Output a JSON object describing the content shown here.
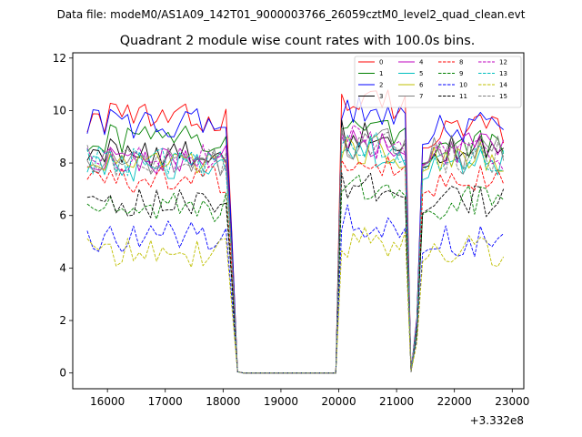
{
  "figure": {
    "suptitle": "Data file: modeM0/AS1A09_142T01_9000003766_26059cztM0_level2_quad_clean.evt"
  },
  "chart_data": {
    "type": "line",
    "title": "Quadrant 2 module wise count rates with 100.0s bins.",
    "xlabel": "",
    "ylabel": "",
    "x_offset_label": "+3.332e8",
    "xlim": [
      15400,
      23200
    ],
    "ylim": [
      -0.6,
      12.2
    ],
    "x_ticks": [
      16000,
      17000,
      18000,
      19000,
      20000,
      21000,
      22000,
      23000
    ],
    "x_tick_labels": [
      "16000",
      "17000",
      "18000",
      "19000",
      "20000",
      "21000",
      "22000",
      "23000"
    ],
    "y_ticks": [
      0,
      2,
      4,
      6,
      8,
      10,
      12
    ],
    "y_tick_labels": [
      "0",
      "2",
      "4",
      "6",
      "8",
      "10",
      "12"
    ],
    "grid": false,
    "legend_position": "top-right",
    "legend_columns": 4,
    "x_start": 15650,
    "x_step": 100,
    "seg_lengths": [
      25,
      17,
      10,
      2,
      15
    ],
    "series": [
      {
        "name": "0",
        "color": "#ff0000",
        "dash": "solid",
        "levels": [
          9.7,
          10.3,
          10.2,
          10.5,
          9.2
        ]
      },
      {
        "name": "1",
        "color": "#008000",
        "dash": "solid",
        "levels": [
          8.9,
          9.3,
          9.1,
          9.8,
          8.6
        ]
      },
      {
        "name": "2",
        "color": "#0000ff",
        "dash": "solid",
        "levels": [
          9.5,
          10.0,
          9.8,
          10.3,
          9.3
        ]
      },
      {
        "name": "3",
        "color": "#000000",
        "dash": "solid",
        "levels": [
          8.4,
          9.0,
          8.8,
          9.6,
          8.4
        ]
      },
      {
        "name": "4",
        "color": "#bf00bf",
        "dash": "solid",
        "levels": [
          8.1,
          8.7,
          8.5,
          9.3,
          8.5
        ]
      },
      {
        "name": "5",
        "color": "#00bfbf",
        "dash": "solid",
        "levels": [
          7.8,
          8.4,
          8.2,
          9.0,
          7.9
        ]
      },
      {
        "name": "6",
        "color": "#bfbf00",
        "dash": "solid",
        "levels": [
          7.9,
          8.5,
          8.3,
          9.1,
          8.2
        ]
      },
      {
        "name": "7",
        "color": "#808080",
        "dash": "solid",
        "levels": [
          8.1,
          8.7,
          8.5,
          9.3,
          8.4
        ]
      },
      {
        "name": "8",
        "color": "#ff0000",
        "dash": "dashed",
        "levels": [
          7.3,
          7.8,
          7.6,
          8.5,
          7.3
        ]
      },
      {
        "name": "9",
        "color": "#008000",
        "dash": "dashed",
        "levels": [
          6.3,
          6.9,
          6.6,
          7.6,
          6.5
        ]
      },
      {
        "name": "10",
        "color": "#0000ff",
        "dash": "dashed",
        "levels": [
          5.2,
          5.8,
          5.5,
          6.4,
          5.0
        ]
      },
      {
        "name": "11",
        "color": "#000000",
        "dash": "dashed",
        "levels": [
          6.4,
          7.0,
          6.8,
          7.8,
          6.5
        ]
      },
      {
        "name": "12",
        "color": "#bf00bf",
        "dash": "dashed",
        "levels": [
          8.2,
          8.8,
          8.6,
          9.4,
          8.3
        ]
      },
      {
        "name": "13",
        "color": "#00bfbf",
        "dash": "dashed",
        "levels": [
          8.1,
          8.7,
          8.5,
          9.2,
          8.1
        ]
      },
      {
        "name": "14",
        "color": "#bfbf00",
        "dash": "dashed",
        "levels": [
          4.6,
          5.0,
          4.9,
          5.8,
          4.6
        ]
      },
      {
        "name": "15",
        "color": "#808080",
        "dash": "dashed",
        "levels": [
          8.1,
          8.6,
          8.4,
          9.2,
          8.2
        ]
      }
    ]
  }
}
